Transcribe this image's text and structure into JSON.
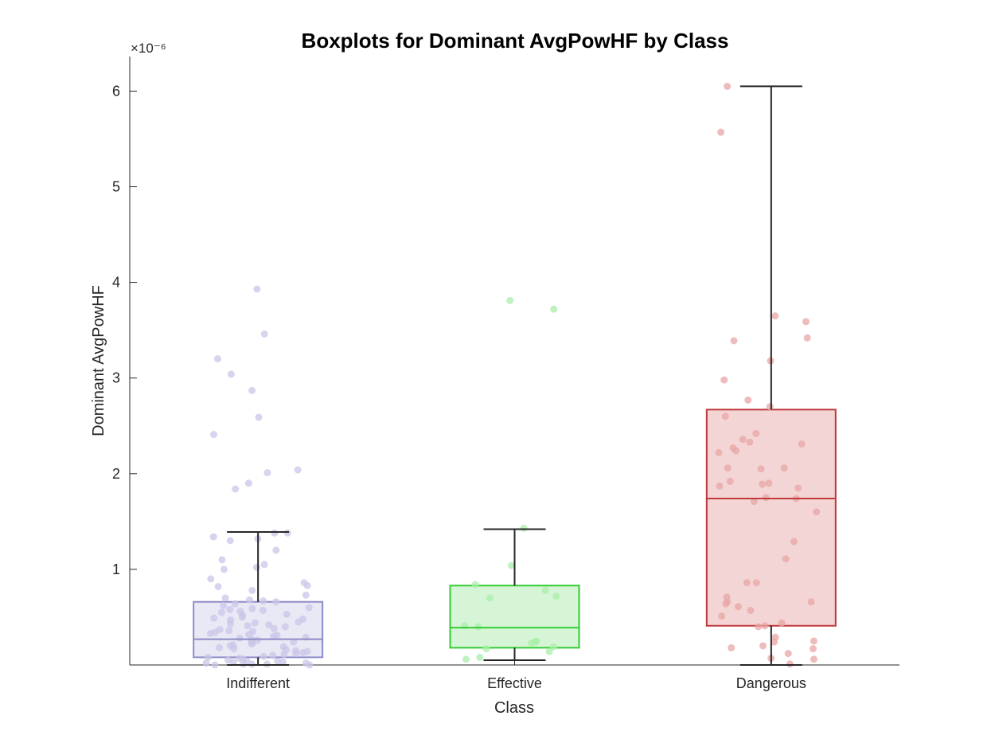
{
  "chart_data": {
    "type": "boxplot",
    "title": "Boxplots for Dominant AvgPowHF by Class",
    "xlabel": "Class",
    "ylabel": "Dominant AvgPowHF",
    "y_exponent_label": "×10⁻⁶",
    "ylim": [
      0,
      6.4
    ],
    "yticks": [
      1,
      2,
      3,
      4,
      5,
      6
    ],
    "categories": [
      "Indifferent",
      "Effective",
      "Dangerous"
    ],
    "grid": false,
    "legend": "none",
    "series": [
      {
        "category": "Indifferent",
        "color": "#8e8cc8",
        "fill": "#e9e8f5",
        "point_color": "#c9c6e8",
        "whisker_low": 0.0,
        "q1": 0.08,
        "median": 0.27,
        "q3": 0.66,
        "whisker_high": 1.39,
        "points": [
          3.93,
          3.46,
          3.2,
          3.04,
          2.87,
          2.59,
          2.41,
          2.04,
          2.01,
          1.9,
          1.84,
          1.38,
          1.38,
          1.34,
          1.32,
          1.3,
          1.2,
          1.1,
          1.05,
          1.02,
          1.0,
          0.9,
          0.86,
          0.83,
          0.82,
          0.78,
          0.73,
          0.7,
          0.68,
          0.67,
          0.66,
          0.64,
          0.62,
          0.6,
          0.59,
          0.58,
          0.57,
          0.56,
          0.55,
          0.53,
          0.52,
          0.5,
          0.49,
          0.48,
          0.47,
          0.45,
          0.44,
          0.43,
          0.42,
          0.41,
          0.4,
          0.38,
          0.37,
          0.36,
          0.35,
          0.34,
          0.33,
          0.32,
          0.31,
          0.3,
          0.29,
          0.28,
          0.27,
          0.26,
          0.25,
          0.24,
          0.23,
          0.22,
          0.21,
          0.2,
          0.19,
          0.18,
          0.17,
          0.16,
          0.15,
          0.14,
          0.13,
          0.12,
          0.11,
          0.1,
          0.09,
          0.08,
          0.07,
          0.06,
          0.05,
          0.04,
          0.04,
          0.03,
          0.03,
          0.02,
          0.02,
          0.01,
          0.01,
          0.01,
          0.0,
          0.0
        ]
      },
      {
        "category": "Effective",
        "color": "#33cc33",
        "fill": "#d6f5d6",
        "point_color": "#aaeeaa",
        "whisker_low": 0.05,
        "q1": 0.18,
        "median": 0.39,
        "q3": 0.83,
        "whisker_high": 1.42,
        "points": [
          3.81,
          3.72,
          1.43,
          1.04,
          0.84,
          0.78,
          0.72,
          0.7,
          0.41,
          0.4,
          0.25,
          0.24,
          0.23,
          0.19,
          0.17,
          0.14,
          0.08,
          0.06
        ]
      },
      {
        "category": "Dangerous",
        "color": "#c0393b",
        "fill": "#f4d5d5",
        "point_color": "#e8a6a6",
        "whisker_low": 0.0,
        "q1": 0.41,
        "median": 1.74,
        "q3": 2.67,
        "whisker_high": 6.05,
        "points": [
          6.05,
          5.57,
          3.65,
          3.59,
          3.42,
          3.39,
          3.18,
          2.98,
          2.77,
          2.7,
          2.6,
          2.42,
          2.36,
          2.33,
          2.31,
          2.27,
          2.24,
          2.22,
          2.06,
          2.06,
          2.05,
          1.92,
          1.9,
          1.89,
          1.87,
          1.85,
          1.75,
          1.74,
          1.71,
          1.6,
          1.29,
          1.11,
          0.86,
          0.86,
          0.71,
          0.66,
          0.66,
          0.64,
          0.61,
          0.57,
          0.51,
          0.44,
          0.41,
          0.4,
          0.29,
          0.25,
          0.24,
          0.2,
          0.18,
          0.17,
          0.12,
          0.07,
          0.06,
          0.01
        ]
      }
    ]
  }
}
